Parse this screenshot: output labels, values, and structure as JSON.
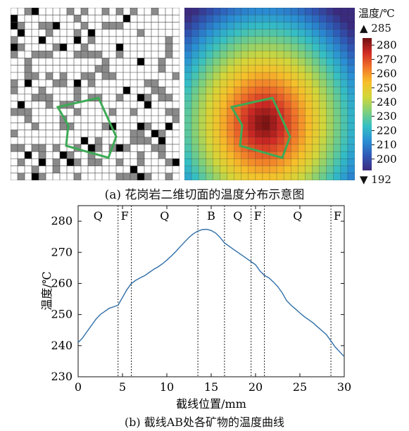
{
  "captions": {
    "top": "(a) 花岗岩二维切面的温度分布示意图",
    "bottom": "(b) 截线AB处各矿物的温度曲线"
  },
  "colorbar": {
    "title": "温度/℃",
    "max_label": "▲ 285",
    "min_label": "▼ 192",
    "ticks": [
      200,
      210,
      220,
      230,
      240,
      250,
      260,
      270,
      280
    ],
    "range": [
      192,
      285
    ],
    "colors": [
      "#3b2b7f",
      "#2f57b5",
      "#2a8fd4",
      "#35bfc4",
      "#7fd07b",
      "#d2d63a",
      "#f7bf2a",
      "#f1752a",
      "#d02a25",
      "#6e1010"
    ]
  },
  "chart_data": [
    {
      "type": "heatmap",
      "panel": "mineral-grid",
      "grid_size": [
        24,
        24
      ],
      "legend": "none",
      "cell_colors": {
        "white": "#ffffff",
        "gray": "#8a8a8a",
        "black": "#000000",
        "grid": "#444444",
        "polygon": "#3daa55"
      }
    },
    {
      "type": "heatmap",
      "panel": "temperature-field",
      "grid_size": [
        24,
        24
      ],
      "value_range": [
        192,
        285
      ],
      "peak_temperature": 285,
      "min_temperature": 192,
      "polygon_color": "#3daa55"
    },
    {
      "type": "line",
      "title": "",
      "xlabel": "截线位置/mm",
      "ylabel": "温度/℃",
      "xlim": [
        0,
        30
      ],
      "ylim": [
        230,
        285
      ],
      "xticks": [
        0,
        5,
        10,
        15,
        20,
        25,
        30
      ],
      "yticks": [
        230,
        240,
        250,
        260,
        270,
        280
      ],
      "grid": false,
      "line_color": "#2f6ea8",
      "x": [
        0,
        0.5,
        1,
        1.5,
        2,
        2.5,
        3,
        3.5,
        4,
        4.5,
        5,
        5.5,
        6,
        6.5,
        7,
        7.5,
        8,
        8.5,
        9,
        9.5,
        10,
        10.5,
        11,
        11.5,
        12,
        12.5,
        13,
        13.5,
        14,
        14.5,
        15,
        15.5,
        16,
        16.5,
        17,
        17.5,
        18,
        18.5,
        19,
        19.5,
        20,
        20.5,
        21,
        21.5,
        22,
        22.5,
        23,
        23.5,
        24,
        24.5,
        25,
        25.5,
        26,
        26.5,
        27,
        27.5,
        28,
        28.5,
        29,
        29.5,
        30
      ],
      "y": [
        241,
        242.5,
        244.5,
        246.5,
        248.5,
        250,
        251,
        252,
        252.5,
        253,
        255.5,
        258,
        260,
        261,
        261.8,
        262.5,
        263.5,
        264.5,
        265.3,
        266.3,
        267.5,
        268.8,
        270.2,
        271.8,
        273.3,
        274.8,
        276,
        276.8,
        277.3,
        277.4,
        277,
        276.2,
        274.8,
        273,
        272,
        271,
        270,
        269,
        268,
        267,
        266,
        264,
        262.6,
        261.8,
        260.5,
        259,
        257,
        254.5,
        253,
        251.8,
        250.5,
        249.3,
        248.3,
        247.3,
        246,
        244.8,
        243.5,
        241.5,
        239.5,
        238,
        236.5
      ],
      "boundaries": [
        4.5,
        6,
        13.5,
        16.5,
        19.5,
        21,
        28.5
      ],
      "regions": [
        {
          "label": "Q",
          "x": 2.25
        },
        {
          "label": "F",
          "x": 5.25
        },
        {
          "label": "Q",
          "x": 9.75
        },
        {
          "label": "B",
          "x": 15
        },
        {
          "label": "Q",
          "x": 18
        },
        {
          "label": "F",
          "x": 20.25
        },
        {
          "label": "Q",
          "x": 24.75
        },
        {
          "label": "F",
          "x": 29.25
        }
      ]
    }
  ]
}
